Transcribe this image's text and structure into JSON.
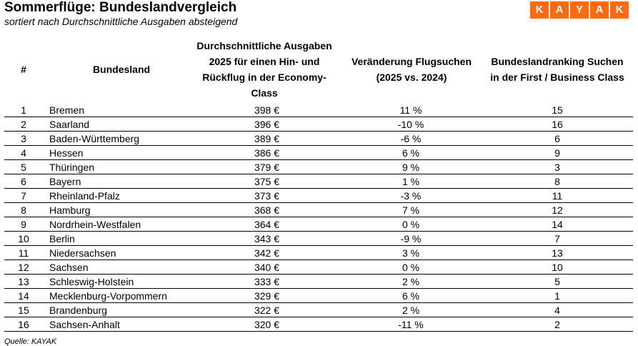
{
  "header": {
    "title": "Sommerflüge: Bundeslandvergleich",
    "subtitle": "sortiert nach Durchschnittliche Ausgaben absteigend"
  },
  "logo": {
    "letters": [
      "K",
      "A",
      "Y",
      "A",
      "K"
    ],
    "color": "#FF690F"
  },
  "table": {
    "headers": {
      "rank": "#",
      "state": "Bundesland",
      "price_lines": [
        "Durchschnittliche Ausgaben",
        "2025 für einen Hin- und",
        "Rückflug in der Economy-",
        "Class"
      ],
      "change_lines": [
        "Veränderung Flugsuchen",
        "(2025 vs. 2024)"
      ],
      "ranking_lines": [
        "Bundeslandranking Suchen",
        "in der First / Business Class"
      ]
    },
    "rows": [
      {
        "rank": "1",
        "state": "Bremen",
        "price": "398 €",
        "change": "11 %",
        "ranking": "15"
      },
      {
        "rank": "2",
        "state": "Saarland",
        "price": "396 €",
        "change": "-10 %",
        "ranking": "16"
      },
      {
        "rank": "3",
        "state": "Baden-Württemberg",
        "price": "389 €",
        "change": "-6 %",
        "ranking": "6"
      },
      {
        "rank": "4",
        "state": "Hessen",
        "price": "386 €",
        "change": "6 %",
        "ranking": "9"
      },
      {
        "rank": "5",
        "state": "Thüringen",
        "price": "379 €",
        "change": "9 %",
        "ranking": "3"
      },
      {
        "rank": "6",
        "state": "Bayern",
        "price": "375 €",
        "change": "1 %",
        "ranking": "8"
      },
      {
        "rank": "7",
        "state": "Rheinland-Pfalz",
        "price": "373 €",
        "change": "-3 %",
        "ranking": "11"
      },
      {
        "rank": "8",
        "state": "Hamburg",
        "price": "368 €",
        "change": "7 %",
        "ranking": "12"
      },
      {
        "rank": "9",
        "state": "Nordrhein-Westfalen",
        "price": "364 €",
        "change": "0 %",
        "ranking": "14"
      },
      {
        "rank": "10",
        "state": "Berlin",
        "price": "343 €",
        "change": "-9 %",
        "ranking": "7"
      },
      {
        "rank": "11",
        "state": "Niedersachsen",
        "price": "342 €",
        "change": "3 %",
        "ranking": "13"
      },
      {
        "rank": "12",
        "state": "Sachsen",
        "price": "340 €",
        "change": "0 %",
        "ranking": "10"
      },
      {
        "rank": "13",
        "state": "Schleswig-Holstein",
        "price": "333 €",
        "change": "2 %",
        "ranking": "5"
      },
      {
        "rank": "14",
        "state": "Mecklenburg-Vorpommern",
        "price": "329 €",
        "change": "6 %",
        "ranking": "1"
      },
      {
        "rank": "15",
        "state": "Brandenburg",
        "price": "322 €",
        "change": "2 %",
        "ranking": "4"
      },
      {
        "rank": "16",
        "state": "Sachsen-Anhalt",
        "price": "320 €",
        "change": "-11 %",
        "ranking": "2"
      }
    ]
  },
  "footer": {
    "source": "Quelle: KAYAK"
  }
}
